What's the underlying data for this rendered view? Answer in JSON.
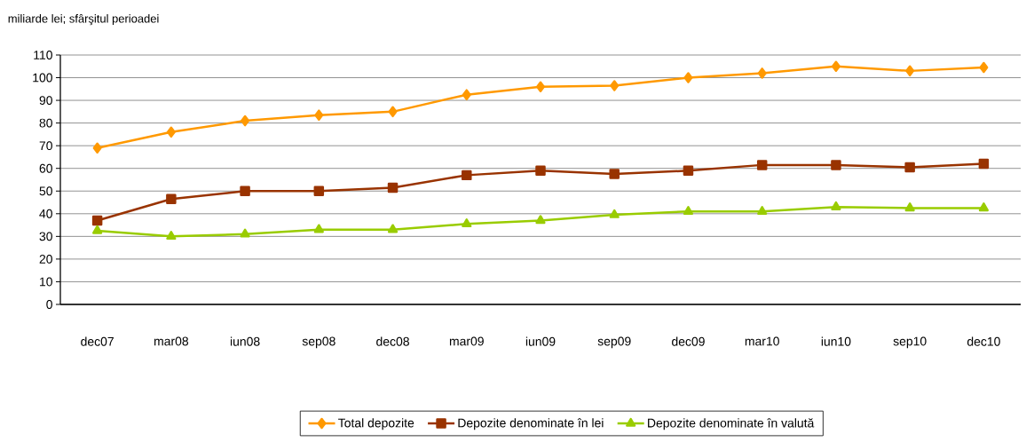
{
  "chart_data": {
    "type": "line",
    "ylabel": "miliarde lei; sfârşitul perioadei",
    "categories": [
      "dec07",
      "mar08",
      "iun08",
      "sep08",
      "dec08",
      "mar09",
      "iun09",
      "sep09",
      "dec09",
      "mar10",
      "iun10",
      "sep10",
      "dec10"
    ],
    "series": [
      {
        "name": "Total depozite",
        "color": "#ff9900",
        "marker": "diamond",
        "values": [
          69,
          76,
          81,
          83.5,
          85,
          92.5,
          96,
          96.5,
          100,
          102,
          105,
          103,
          104.5
        ]
      },
      {
        "name": "Depozite denominate în lei",
        "color": "#993300",
        "marker": "square",
        "values": [
          37,
          46.5,
          50,
          50,
          51.5,
          57,
          59,
          57.5,
          59,
          61.5,
          61.5,
          60.5,
          62
        ]
      },
      {
        "name": "Depozite denominate în valută",
        "color": "#99cc00",
        "marker": "triangle",
        "values": [
          32.5,
          30,
          31,
          33,
          33,
          35.5,
          37,
          39.5,
          41,
          41,
          43,
          42.5,
          42.5
        ]
      }
    ],
    "ylim": [
      0,
      110
    ],
    "yticks": [
      0,
      10,
      20,
      30,
      40,
      50,
      60,
      70,
      80,
      90,
      100,
      110
    ],
    "grid": "y",
    "legend": "bottom",
    "line_style": "solid"
  }
}
